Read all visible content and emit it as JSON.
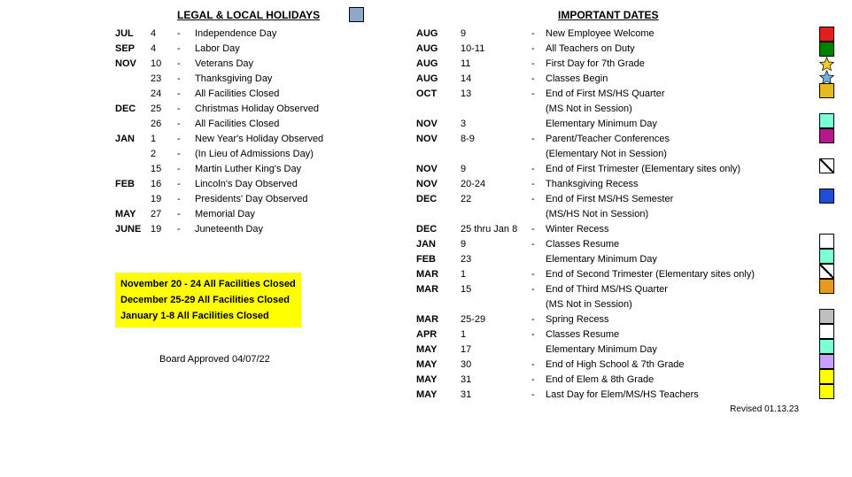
{
  "headings": {
    "legal": "LEGAL & LOCAL HOLIDAYS",
    "important": "IMPORTANT DATES"
  },
  "legend_color": "#8fa8c7",
  "legal_rows": [
    {
      "m": "JUL",
      "d": "4",
      "desc": "Independence Day"
    },
    {
      "m": "SEP",
      "d": "4",
      "desc": "Labor Day"
    },
    {
      "m": "NOV",
      "d": "10",
      "desc": "Veterans Day"
    },
    {
      "m": "",
      "d": "23",
      "desc": "Thanksgiving Day"
    },
    {
      "m": "",
      "d": "24",
      "desc": "All Facilities Closed"
    },
    {
      "m": "DEC",
      "d": "25",
      "desc": "Christmas Holiday Observed"
    },
    {
      "m": "",
      "d": "26",
      "desc": "All Facilities Closed"
    },
    {
      "m": "JAN",
      "d": "1",
      "desc": "New Year's Holiday Observed"
    },
    {
      "m": "",
      "d": "2",
      "desc": "(In Lieu of Admissions Day)"
    },
    {
      "m": "",
      "d": "15",
      "desc": "Martin Luther King's Day"
    },
    {
      "m": "FEB",
      "d": "16",
      "desc": "Lincoln's Day Observed"
    },
    {
      "m": "",
      "d": "19",
      "desc": "Presidents' Day Observed"
    },
    {
      "m": "MAY",
      "d": "27",
      "desc": "Memorial Day"
    },
    {
      "m": "JUNE",
      "d": "19",
      "desc": "Juneteenth Day"
    }
  ],
  "important_rows": [
    {
      "m": "AUG",
      "d": "9",
      "dash": "-",
      "desc": "New Employee Welcome"
    },
    {
      "m": "AUG",
      "d": "10-11",
      "dash": "-",
      "desc": "All Teachers on Duty"
    },
    {
      "m": "AUG",
      "d": "11",
      "dash": "-",
      "desc": "First Day for 7th Grade"
    },
    {
      "m": "AUG",
      "d": "14",
      "dash": "-",
      "desc": "Classes Begin"
    },
    {
      "m": "OCT",
      "d": "13",
      "dash": "-",
      "desc": "End of First MS/HS Quarter"
    },
    {
      "m": "",
      "d": "",
      "dash": "",
      "desc": "(MS Not in Session)"
    },
    {
      "m": "NOV",
      "d": "3",
      "dash": "",
      "desc": "Elementary Minimum Day"
    },
    {
      "m": "NOV",
      "d": "8-9",
      "dash": "-",
      "desc": "Parent/Teacher Conferences"
    },
    {
      "m": "",
      "d": "",
      "dash": "",
      "desc": "(Elementary Not in Session)"
    },
    {
      "m": "NOV",
      "d": "9",
      "dash": "-",
      "desc": "End of First Trimester (Elementary sites only)"
    },
    {
      "m": "NOV",
      "d": "20-24",
      "dash": "-",
      "desc": "Thanksgiving Recess"
    },
    {
      "m": "DEC",
      "d": "22",
      "dash": "-",
      "desc": "End of First MS/HS Semester"
    },
    {
      "m": "",
      "d": "",
      "dash": "",
      "desc": "(MS/HS Not in Session)"
    },
    {
      "m": "DEC",
      "d": "25 thru Jan 8",
      "dash": "-",
      "desc": "Winter Recess"
    },
    {
      "m": "JAN",
      "d": "9",
      "dash": "-",
      "desc": "Classes Resume"
    },
    {
      "m": "FEB",
      "d": "23",
      "dash": "",
      "desc": "Elementary Minimum Day"
    },
    {
      "m": "MAR",
      "d": "1",
      "dash": "-",
      "desc": "End of Second Trimester (Elementary sites only)"
    },
    {
      "m": "MAR",
      "d": "15",
      "dash": "-",
      "desc": "End of Third MS/HS Quarter"
    },
    {
      "m": "",
      "d": "",
      "dash": "",
      "desc": "(MS Not in Session)"
    },
    {
      "m": "MAR",
      "d": "25-29",
      "dash": "-",
      "desc": "Spring Recess"
    },
    {
      "m": "APR",
      "d": "1",
      "dash": "-",
      "desc": "Classes Resume"
    },
    {
      "m": "MAY",
      "d": "17",
      "dash": "",
      "desc": "Elementary Minimum Day"
    },
    {
      "m": "MAY",
      "d": "30",
      "dash": "-",
      "desc": "End of High School & 7th Grade"
    },
    {
      "m": "MAY",
      "d": "31",
      "dash": "-",
      "desc": "End of Elem & 8th Grade"
    },
    {
      "m": "MAY",
      "d": "31",
      "dash": "-",
      "desc": "Last Day for Elem/MS/HS Teachers"
    }
  ],
  "highlight": [
    "November 20 - 24 All Facilities Closed",
    "December 25-29 All Facilities Closed",
    "January 1-8 All Facilities Closed"
  ],
  "board_approved": "Board Approved 04/07/22",
  "revised": "Revised 01.13.23",
  "markers": [
    {
      "type": "sq",
      "fill": "#e21f1f",
      "top": 0
    },
    {
      "type": "sq",
      "fill": "#008000",
      "top": 0
    },
    {
      "type": "star",
      "fill": "#f2cf1f",
      "stroke": "#000",
      "top": 0
    },
    {
      "type": "star",
      "fill": "#6fb3e6",
      "stroke": "#000",
      "top": 0
    },
    {
      "type": "sq",
      "fill": "#e8b923",
      "top": 0
    },
    {
      "type": "gap",
      "h": 17
    },
    {
      "type": "sq",
      "fill": "#7fffd4",
      "top": 0
    },
    {
      "type": "sq",
      "fill": "#b5178e",
      "top": 0
    },
    {
      "type": "gap",
      "h": 17
    },
    {
      "type": "diag",
      "fill": "#ffffff",
      "top": 0
    },
    {
      "type": "gap",
      "h": 17
    },
    {
      "type": "sq",
      "fill": "#1f4fd1",
      "top": 0
    },
    {
      "type": "gap",
      "h": 17
    },
    {
      "type": "gap",
      "h": 17
    },
    {
      "type": "sq",
      "fill": "#ffffff",
      "top": 0
    },
    {
      "type": "sq",
      "fill": "#7fffd4",
      "top": 0
    },
    {
      "type": "diagb",
      "fill": "#ffffff",
      "top": 0
    },
    {
      "type": "sq",
      "fill": "#e59b1f",
      "top": 0
    },
    {
      "type": "gap",
      "h": 17
    },
    {
      "type": "sq",
      "fill": "#bfbfbf",
      "top": 0
    },
    {
      "type": "sq",
      "fill": "#ffffff",
      "top": 0
    },
    {
      "type": "sq",
      "fill": "#7fffd4",
      "top": 0
    },
    {
      "type": "sq",
      "fill": "#c9a0ff",
      "top": 0
    },
    {
      "type": "sq",
      "fill": "#ffff00",
      "top": 0
    },
    {
      "type": "sq",
      "fill": "#ffff00",
      "top": 0
    }
  ]
}
